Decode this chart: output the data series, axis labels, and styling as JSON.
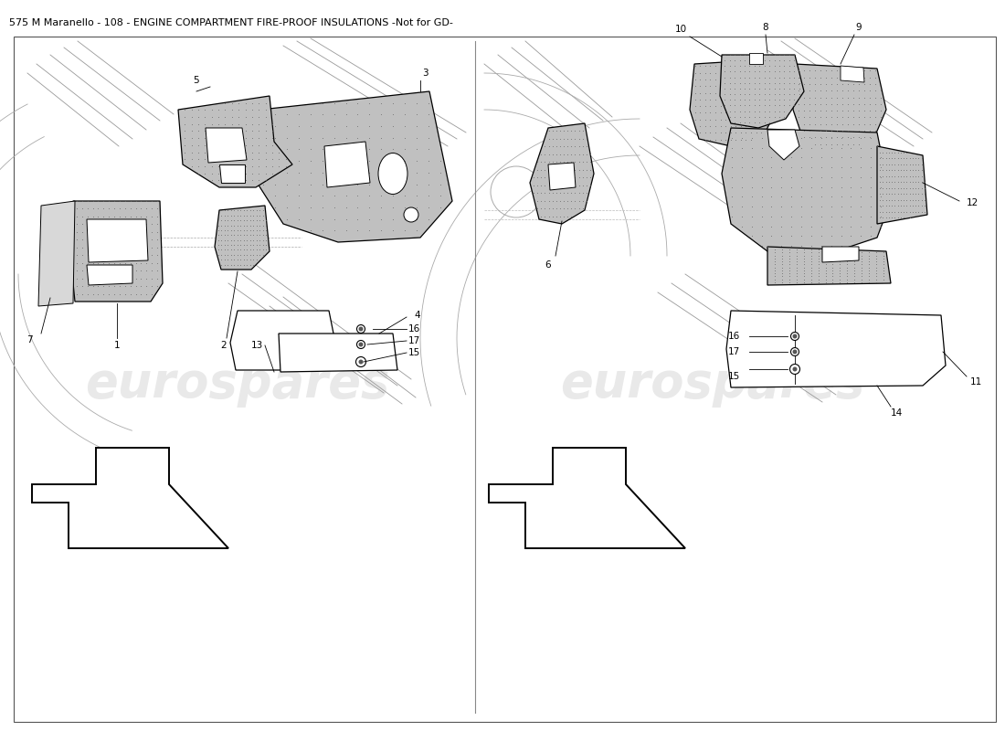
{
  "title": "575 M Maranello – 108 – ENGINE COMPARTMENT FIRE-PROOF INSULATIONS -Not for GD-",
  "title_raw": "575 M Maranello - 108 - ENGINE COMPARTMENT FIRE-PROOF INSULATIONS -Not for GD-",
  "bg_color": "#ffffff",
  "border_color": "#000000",
  "divider_color": "#888888",
  "watermark_text": "eurospares",
  "watermark_color": "#c8c8c8",
  "watermark_alpha": 0.4,
  "part_gray": "#c0c0c0",
  "part_edge": "#000000",
  "line_color": "#000000",
  "label_fontsize": 7.5,
  "title_fontsize": 8.0,
  "lw_part": 0.9,
  "lw_bg": 0.6,
  "lw_leader": 0.6,
  "lw_arrow": 1.4
}
